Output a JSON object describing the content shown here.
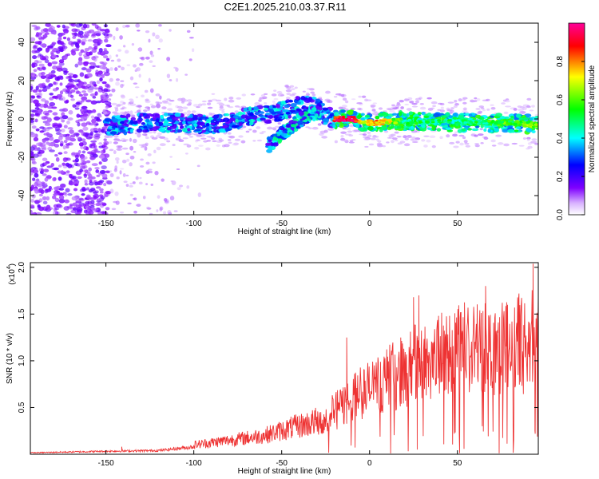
{
  "title": "C2E1.2025.210.03.37.R11",
  "chart_data": [
    {
      "type": "heatmap",
      "xlabel": "Height of straight line (km)",
      "ylabel": "Frequency (Hz)",
      "xlim": [
        -193,
        96
      ],
      "ylim": [
        -50,
        50
      ],
      "x_ticks": [
        -150,
        -100,
        -50,
        0,
        50
      ],
      "y_ticks": [
        -40,
        -20,
        0,
        20,
        40
      ],
      "colorbar": {
        "label": "Normalized spectral amplitude",
        "range": [
          0,
          1
        ],
        "ticks": [
          0.0,
          0.2,
          0.4,
          0.6,
          0.8
        ],
        "tick_labels": [
          "0.0",
          "0.2",
          "0.4",
          "0.6",
          "0.8"
        ],
        "colors": [
          "#ffffff",
          "#7f00ff",
          "#0000ff",
          "#00ffff",
          "#00ff00",
          "#ffff00",
          "#ff0000",
          "#ff00aa"
        ]
      },
      "description_points": {
        "ridge": [
          [
            -150,
            -4
          ],
          [
            -130,
            -2
          ],
          [
            -110,
            -2
          ],
          [
            -90,
            -3
          ],
          [
            -80,
            -2
          ],
          [
            -70,
            1
          ],
          [
            -60,
            2
          ],
          [
            -50,
            4
          ],
          [
            -40,
            7
          ],
          [
            -30,
            6
          ],
          [
            -25,
            2
          ],
          [
            -20,
            0
          ],
          [
            -10,
            0
          ],
          [
            0,
            -2
          ],
          [
            20,
            -1
          ],
          [
            50,
            -2
          ],
          [
            80,
            -2
          ],
          [
            95,
            -3
          ]
        ],
        "branch": [
          [
            -58,
            -14
          ],
          [
            -50,
            -8
          ],
          [
            -42,
            -2
          ],
          [
            -35,
            2
          ],
          [
            -28,
            4
          ]
        ],
        "strong_segment": [
          [
            -18,
            0.9
          ],
          [
            -10,
            1.0
          ],
          [
            -5,
            0.7
          ],
          [
            5,
            0.8
          ],
          [
            20,
            0.5
          ],
          [
            40,
            0.45
          ],
          [
            60,
            0.5
          ],
          [
            75,
            0.55
          ],
          [
            90,
            0.6
          ]
        ],
        "noise_region_xlim": [
          -193,
          -148
        ]
      }
    },
    {
      "type": "line",
      "xlabel": "Height of straight line (km)",
      "ylabel": "SNR (10 * v/v)",
      "y_scale_label": "(x10",
      "y_scale_exponent": "4",
      "xlim": [
        -193,
        96
      ],
      "ylim": [
        0,
        2.05
      ],
      "x_ticks": [
        -150,
        -100,
        -50,
        0,
        50
      ],
      "y_ticks": [
        0.5,
        1.0,
        1.5,
        2.0
      ],
      "y_tick_labels": [
        "0.5",
        "1.0",
        "1.5",
        "2.0"
      ],
      "color": "#ee3333",
      "envelope": [
        {
          "x": -193,
          "y": 0.02
        },
        {
          "x": -150,
          "y": 0.04
        },
        {
          "x": -120,
          "y": 0.05
        },
        {
          "x": -100,
          "y": 0.1
        },
        {
          "x": -80,
          "y": 0.15
        },
        {
          "x": -60,
          "y": 0.2
        },
        {
          "x": -45,
          "y": 0.28
        },
        {
          "x": -30,
          "y": 0.35
        },
        {
          "x": -20,
          "y": 0.45
        },
        {
          "x": -10,
          "y": 0.6
        },
        {
          "x": 0,
          "y": 0.7
        },
        {
          "x": 10,
          "y": 0.8
        },
        {
          "x": 20,
          "y": 0.9
        },
        {
          "x": 30,
          "y": 1.0
        },
        {
          "x": 40,
          "y": 1.05
        },
        {
          "x": 50,
          "y": 1.1
        },
        {
          "x": 60,
          "y": 1.12
        },
        {
          "x": 70,
          "y": 1.15
        },
        {
          "x": 80,
          "y": 1.15
        },
        {
          "x": 96,
          "y": 1.18
        }
      ],
      "peaks": [
        {
          "x": -141,
          "y": 0.08
        },
        {
          "x": -13,
          "y": 1.25
        },
        {
          "x": 25,
          "y": 1.68
        },
        {
          "x": 28,
          "y": 1.7
        },
        {
          "x": 52,
          "y": 1.52
        },
        {
          "x": 66,
          "y": 1.8
        },
        {
          "x": 93,
          "y": 2.04
        }
      ],
      "dips": [
        {
          "x": 27,
          "y": 0.05
        },
        {
          "x": 64,
          "y": 0.3
        },
        {
          "x": 94,
          "y": 0.25
        }
      ]
    }
  ]
}
